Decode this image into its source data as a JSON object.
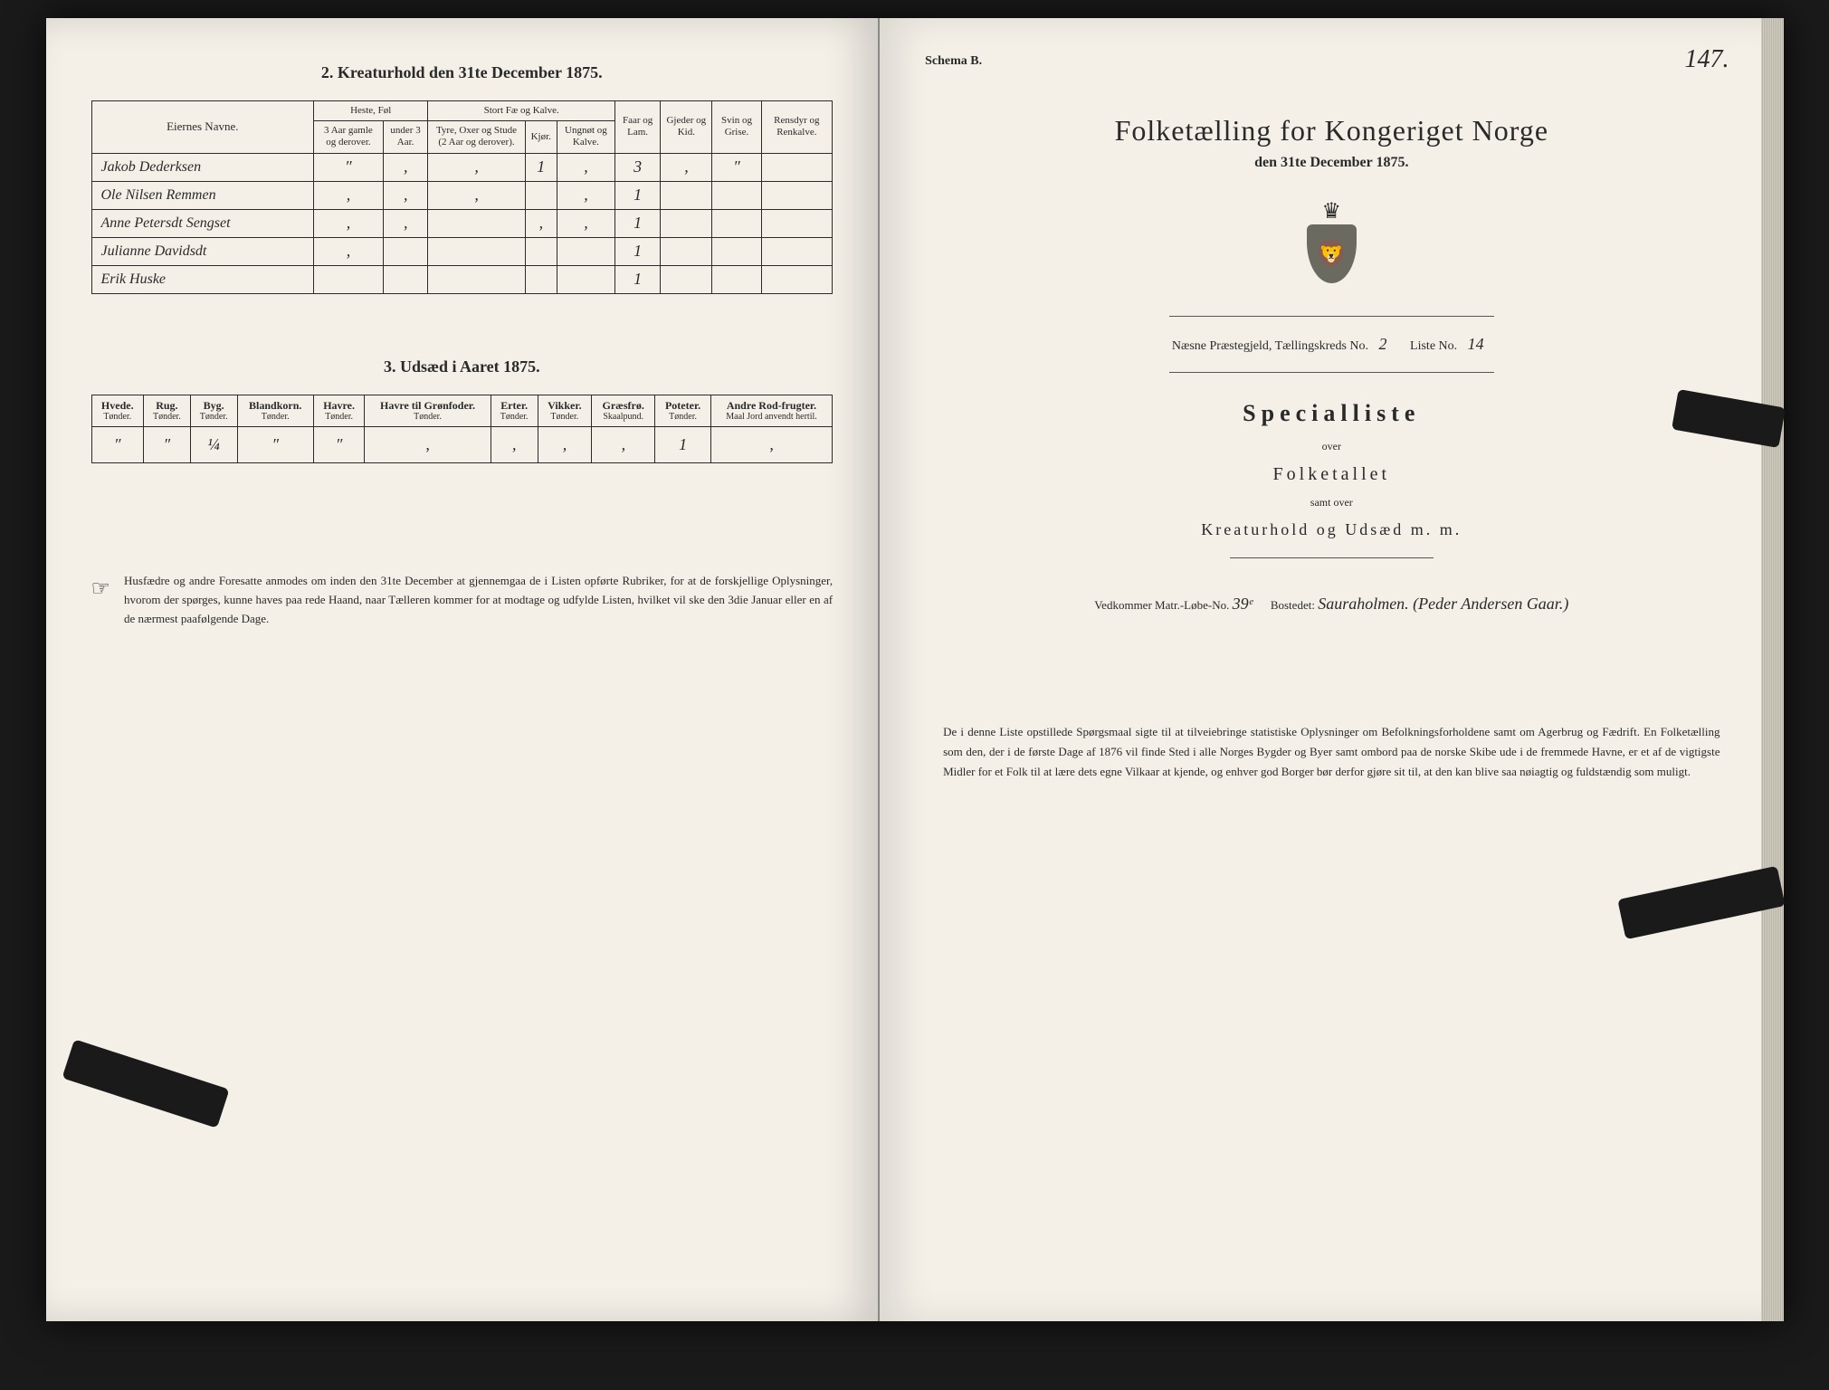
{
  "left": {
    "section2_title": "2. Kreaturhold den 31te December 1875.",
    "table2": {
      "headers": {
        "name": "Eiernes Navne.",
        "group_heste": "Heste, Føl",
        "group_fae": "Stort Fæ og Kalve.",
        "h1": "3 Aar gamle og derover.",
        "h2": "under 3 Aar.",
        "h3": "Tyre, Oxer og Stude (2 Aar og derover).",
        "h4": "Kjør.",
        "h5": "Ungnøt og Kalve.",
        "faar": "Faar og Lam.",
        "gjeder": "Gjeder og Kid.",
        "svin": "Svin og Grise.",
        "ren": "Rensdyr og Renkalve."
      },
      "rows": [
        {
          "name": "Jakob Dederksen",
          "c": [
            "″",
            "‚",
            "‚",
            "1",
            "‚",
            "3",
            "‚",
            "″",
            ""
          ]
        },
        {
          "name": "Ole Nilsen Remmen",
          "c": [
            "‚",
            "‚",
            "‚",
            "",
            "‚",
            "1",
            "",
            "",
            ""
          ]
        },
        {
          "name": "Anne Petersdt Sengset",
          "c": [
            "‚",
            "‚",
            "",
            "‚",
            "‚",
            "1",
            "",
            "",
            ""
          ]
        },
        {
          "name": "Julianne Davidsdt",
          "c": [
            "‚",
            "",
            "",
            "",
            "",
            "1",
            "",
            "",
            ""
          ]
        },
        {
          "name": "Erik Huske",
          "c": [
            "",
            "",
            "",
            "",
            "",
            "1",
            "",
            "",
            ""
          ]
        }
      ]
    },
    "section3_title": "3. Udsæd i Aaret 1875.",
    "table3": {
      "cols": [
        {
          "h": "Hvede.",
          "s": "Tønder."
        },
        {
          "h": "Rug.",
          "s": "Tønder."
        },
        {
          "h": "Byg.",
          "s": "Tønder."
        },
        {
          "h": "Blandkorn.",
          "s": "Tønder."
        },
        {
          "h": "Havre.",
          "s": "Tønder."
        },
        {
          "h": "Havre til Grønfoder.",
          "s": "Tønder."
        },
        {
          "h": "Erter.",
          "s": "Tønder."
        },
        {
          "h": "Vikker.",
          "s": "Tønder."
        },
        {
          "h": "Græsfrø.",
          "s": "Skaalpund."
        },
        {
          "h": "Poteter.",
          "s": "Tønder."
        },
        {
          "h": "Andre Rod-frugter.",
          "s": "Maal Jord anvendt hertil."
        }
      ],
      "row": [
        "″",
        "″",
        "¼",
        "″",
        "″",
        "‚",
        "‚",
        "‚",
        "‚",
        "1",
        "‚"
      ]
    },
    "note": "Husfædre og andre Foresatte anmodes om inden den 31te December at gjennemgaa de i Listen opførte Rubriker, for at de forskjellige Oplysninger, hvorom der spørges, kunne haves paa rede Haand, naar Tælleren kommer for at modtage og udfylde Listen, hvilket vil ske den 3die Januar eller en af de nærmest paafølgende Dage."
  },
  "right": {
    "schema": "Schema B.",
    "page_num": "147.",
    "main_title": "Folketælling for Kongeriget Norge",
    "sub_title": "den 31te December 1875.",
    "parish_prefix": "Næsne Præstegjeld, Tællingskreds No.",
    "parish_kreds": "2",
    "liste_label": "Liste No.",
    "liste_no": "14",
    "special": "Specialliste",
    "over": "over",
    "folketallet": "Folketallet",
    "samt": "samt over",
    "kreatur": "Kreaturhold og Udsæd m. m.",
    "matr_label": "Vedkommer Matr.-Løbe-No.",
    "matr_no": "39ᵉ",
    "bosted_label": "Bostedet:",
    "bosted": "Sauraholmen. (Peder Andersen Gaar.)",
    "note": "De i denne Liste opstillede Spørgsmaal sigte til at tilveiebringe statistiske Oplysninger om Befolkningsforholdene samt om Agerbrug og Fædrift. En Folketælling som den, der i de første Dage af 1876 vil finde Sted i alle Norges Bygder og Byer samt ombord paa de norske Skibe ude i de fremmede Havne, er et af de vigtigste Midler for et Folk til at lære dets egne Vilkaar at kjende, og enhver god Borger bør derfor gjøre sit til, at den kan blive saa nøiagtig og fuldstændig som muligt."
  },
  "colors": {
    "paper": "#f4f0e8",
    "ink": "#2a2a2a",
    "edge": "#1a1a1a"
  }
}
